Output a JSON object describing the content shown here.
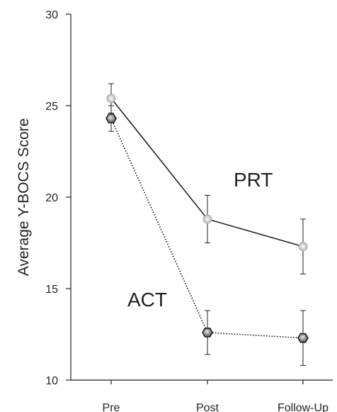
{
  "chart_data": {
    "type": "line",
    "title": "",
    "xlabel": "",
    "ylabel": "Average Y-BOCS Score",
    "categories": [
      "Pre",
      "Post",
      "Follow-Up"
    ],
    "ylim": [
      10,
      30
    ],
    "yticks": [
      "10",
      "15",
      "20",
      "25",
      "30"
    ],
    "grid": false,
    "series": [
      {
        "name": "PRT",
        "values": [
          25.4,
          18.8,
          17.3
        ],
        "error": [
          0.8,
          1.3,
          1.5
        ],
        "line_style": "solid",
        "marker": "circle",
        "color": "#231f20",
        "marker_color": "#bcbec0"
      },
      {
        "name": "ACT",
        "values": [
          24.3,
          12.6,
          12.3
        ],
        "error": [
          0.7,
          1.2,
          1.5
        ],
        "line_style": "dotted",
        "marker": "hexagon",
        "color": "#231f20",
        "marker_color": "#808285"
      }
    ]
  }
}
